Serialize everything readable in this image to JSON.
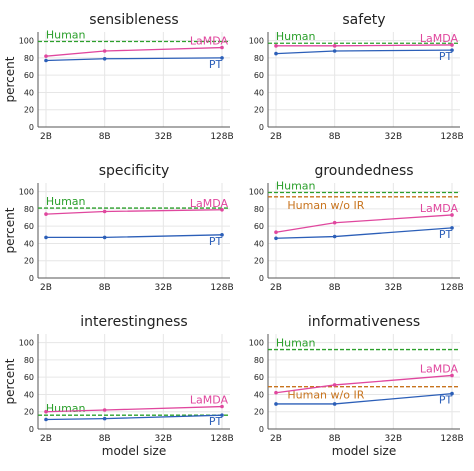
{
  "chart_data": [
    {
      "type": "line",
      "title": "sensibleness",
      "ylabel": "percent",
      "xlabel": "",
      "categories": [
        "2B",
        "8B",
        "32B",
        "128B"
      ],
      "x": [
        2,
        8,
        32,
        128
      ],
      "xscale": "log",
      "ylim": [
        0,
        110
      ],
      "yticks": [
        0,
        20,
        40,
        60,
        80,
        100
      ],
      "series": [
        {
          "name": "LaMDA",
          "color": "#e0479e",
          "x": [
            2,
            8,
            128
          ],
          "values": [
            82,
            88,
            92
          ]
        },
        {
          "name": "PT",
          "color": "#2c5fb8",
          "x": [
            2,
            8,
            128
          ],
          "values": [
            77,
            79,
            80
          ]
        }
      ],
      "reference_lines": [
        {
          "name": "Human",
          "color": "#2ca02c",
          "value": 99
        }
      ],
      "grid": true
    },
    {
      "type": "line",
      "title": "safety",
      "ylabel": "",
      "xlabel": "",
      "categories": [
        "2B",
        "8B",
        "32B",
        "128B"
      ],
      "x": [
        2,
        8,
        32,
        128
      ],
      "xscale": "log",
      "ylim": [
        0,
        110
      ],
      "yticks": [
        0,
        20,
        40,
        60,
        80,
        100
      ],
      "series": [
        {
          "name": "LaMDA",
          "color": "#e0479e",
          "x": [
            2,
            8,
            128
          ],
          "values": [
            94,
            94,
            95
          ]
        },
        {
          "name": "PT",
          "color": "#2c5fb8",
          "x": [
            2,
            8,
            128
          ],
          "values": [
            85,
            88,
            89
          ]
        }
      ],
      "reference_lines": [
        {
          "name": "Human",
          "color": "#2ca02c",
          "value": 97
        }
      ],
      "grid": true
    },
    {
      "type": "line",
      "title": "specificity",
      "ylabel": "percent",
      "xlabel": "",
      "categories": [
        "2B",
        "8B",
        "32B",
        "128B"
      ],
      "x": [
        2,
        8,
        32,
        128
      ],
      "xscale": "log",
      "ylim": [
        0,
        110
      ],
      "yticks": [
        0,
        20,
        40,
        60,
        80,
        100
      ],
      "series": [
        {
          "name": "LaMDA",
          "color": "#e0479e",
          "x": [
            2,
            8,
            128
          ],
          "values": [
            74,
            77,
            79
          ]
        },
        {
          "name": "PT",
          "color": "#2c5fb8",
          "x": [
            2,
            8,
            128
          ],
          "values": [
            47,
            47,
            50
          ]
        }
      ],
      "reference_lines": [
        {
          "name": "Human",
          "color": "#2ca02c",
          "value": 81
        }
      ],
      "grid": true
    },
    {
      "type": "line",
      "title": "groundedness",
      "ylabel": "",
      "xlabel": "",
      "categories": [
        "2B",
        "8B",
        "32B",
        "128B"
      ],
      "x": [
        2,
        8,
        32,
        128
      ],
      "xscale": "log",
      "ylim": [
        0,
        110
      ],
      "yticks": [
        0,
        20,
        40,
        60,
        80,
        100
      ],
      "series": [
        {
          "name": "LaMDA",
          "color": "#e0479e",
          "x": [
            2,
            8,
            128
          ],
          "values": [
            53,
            64,
            73
          ]
        },
        {
          "name": "PT",
          "color": "#2c5fb8",
          "x": [
            2,
            8,
            128
          ],
          "values": [
            46,
            48,
            58
          ]
        }
      ],
      "reference_lines": [
        {
          "name": "Human",
          "color": "#2ca02c",
          "value": 99
        },
        {
          "name": "Human w/o IR",
          "color": "#c8741e",
          "value": 94
        }
      ],
      "grid": true
    },
    {
      "type": "line",
      "title": "interestingness",
      "ylabel": "percent",
      "xlabel": "model size",
      "categories": [
        "2B",
        "8B",
        "32B",
        "128B"
      ],
      "x": [
        2,
        8,
        32,
        128
      ],
      "xscale": "log",
      "ylim": [
        0,
        110
      ],
      "yticks": [
        0,
        20,
        40,
        60,
        80,
        100
      ],
      "series": [
        {
          "name": "LaMDA",
          "color": "#e0479e",
          "x": [
            2,
            8,
            128
          ],
          "values": [
            20,
            22,
            26
          ]
        },
        {
          "name": "PT",
          "color": "#2c5fb8",
          "x": [
            2,
            8,
            128
          ],
          "values": [
            11,
            12,
            16
          ]
        }
      ],
      "reference_lines": [
        {
          "name": "Human",
          "color": "#2ca02c",
          "value": 16
        }
      ],
      "grid": true
    },
    {
      "type": "line",
      "title": "informativeness",
      "ylabel": "",
      "xlabel": "model size",
      "categories": [
        "2B",
        "8B",
        "32B",
        "128B"
      ],
      "x": [
        2,
        8,
        32,
        128
      ],
      "xscale": "log",
      "ylim": [
        0,
        110
      ],
      "yticks": [
        0,
        20,
        40,
        60,
        80,
        100
      ],
      "series": [
        {
          "name": "LaMDA",
          "color": "#e0479e",
          "x": [
            2,
            8,
            128
          ],
          "values": [
            42,
            51,
            62
          ]
        },
        {
          "name": "PT",
          "color": "#2c5fb8",
          "x": [
            2,
            8,
            128
          ],
          "values": [
            29,
            29,
            41
          ]
        }
      ],
      "reference_lines": [
        {
          "name": "Human",
          "color": "#2ca02c",
          "value": 92
        },
        {
          "name": "Human w/o IR",
          "color": "#c8741e",
          "value": 49
        }
      ],
      "grid": true
    }
  ]
}
